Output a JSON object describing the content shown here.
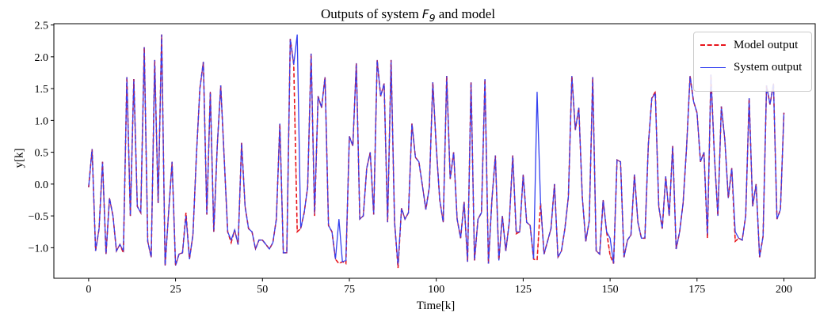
{
  "chart_data": {
    "type": "line",
    "title_prefix": "Outputs of system ",
    "title_math": "F",
    "title_math_sub": "9",
    "title_suffix": " and model",
    "xlabel": "Time[k]",
    "ylabel": "y[k]",
    "xlim": [
      -10,
      209
    ],
    "ylim": [
      -1.48,
      2.52
    ],
    "xticks": [
      0,
      25,
      50,
      75,
      100,
      125,
      150,
      175,
      200
    ],
    "yticks": [
      -1.0,
      -0.5,
      0.0,
      0.5,
      1.0,
      1.5,
      2.0,
      2.5
    ],
    "ytick_labels": [
      "−1.0",
      "−0.5",
      "0.0",
      "0.5",
      "1.0",
      "1.5",
      "2.0",
      "2.5"
    ],
    "grid": false,
    "legend_position": "top-right",
    "series": [
      {
        "name": "Model output",
        "style": "dashed",
        "color": "#e8141b"
      },
      {
        "name": "System output",
        "style": "solid",
        "color": "#3340f0"
      }
    ],
    "x_start": 0,
    "x_step": 1,
    "y_values": [
      -0.05,
      0.55,
      -1.05,
      -0.7,
      0.35,
      -1.1,
      -0.22,
      -0.5,
      -1.05,
      -0.95,
      -1.05,
      1.68,
      -0.5,
      1.65,
      -0.35,
      -0.45,
      2.15,
      -0.9,
      -1.15,
      1.95,
      -0.3,
      2.35,
      -1.28,
      -0.45,
      0.35,
      -1.28,
      -1.1,
      -1.08,
      -0.5,
      -1.18,
      -0.8,
      0.45,
      1.5,
      1.92,
      -0.48,
      1.45,
      -0.75,
      0.6,
      1.55,
      0.4,
      -0.75,
      -0.88,
      -0.72,
      -0.95,
      0.65,
      -0.35,
      -0.7,
      -0.75,
      -1.02,
      -0.88,
      -0.88,
      -0.95,
      -1.02,
      -0.92,
      -0.55,
      0.95,
      -1.08,
      -1.08,
      2.28,
      1.88,
      2.35,
      -0.7,
      -0.45,
      -0.05,
      2.05,
      -0.47,
      1.38,
      1.2,
      1.68,
      -0.65,
      -0.75,
      -1.18,
      -0.55,
      -1.22,
      -1.2,
      0.75,
      0.6,
      1.9,
      -0.55,
      -0.5,
      0.25,
      0.5,
      -0.48,
      1.95,
      1.38,
      1.58,
      -0.6,
      1.95,
      -0.6,
      -1.28,
      -0.38,
      -0.55,
      -0.45,
      0.95,
      0.42,
      0.35,
      -0.02,
      -0.4,
      -0.05,
      1.6,
      0.58,
      -0.25,
      -0.6,
      1.7,
      0.08,
      0.5,
      -0.55,
      -0.85,
      -0.28,
      -1.22,
      1.6,
      -1.2,
      -0.55,
      -0.45,
      1.65,
      -1.25,
      -0.25,
      0.45,
      -1.2,
      -0.5,
      -1.05,
      -0.6,
      0.45,
      -0.75,
      -0.75,
      0.15,
      -0.6,
      -0.65,
      -1.18,
      1.45,
      -0.3,
      -1.1,
      -0.9,
      -0.7,
      0.0,
      -1.15,
      -1.05,
      -0.7,
      -0.2,
      1.7,
      0.85,
      1.2,
      -0.2,
      -0.9,
      -0.58,
      1.68,
      -1.05,
      -1.1,
      -0.25,
      -0.75,
      -0.85,
      -1.25,
      0.38,
      0.35,
      -1.15,
      -0.88,
      -0.8,
      0.15,
      -0.6,
      -0.85,
      -0.85,
      0.62,
      1.35,
      1.42,
      -0.35,
      -0.7,
      0.12,
      -0.5,
      0.6,
      -1.02,
      -0.75,
      -0.3,
      0.58,
      1.7,
      1.3,
      1.12,
      0.35,
      0.5,
      -0.8,
      1.72,
      0.45,
      -0.5,
      1.22,
      0.7,
      -0.22,
      0.25,
      -0.75,
      -0.85,
      -0.88,
      -0.5,
      1.35,
      -0.35,
      0.0,
      -1.15,
      -0.82,
      1.55,
      1.25,
      1.58,
      -0.55,
      -0.4,
      1.12
    ],
    "model_deviations": [
      {
        "index": 10,
        "value": -1.08
      },
      {
        "index": 28,
        "value": -0.45
      },
      {
        "index": 41,
        "value": -0.92
      },
      {
        "index": 60,
        "value": -0.75
      },
      {
        "index": 65,
        "value": -0.5
      },
      {
        "index": 72,
        "value": -1.25
      },
      {
        "index": 74,
        "value": -1.25
      },
      {
        "index": 89,
        "value": -1.32
      },
      {
        "index": 123,
        "value": -0.78
      },
      {
        "index": 129,
        "value": -1.2
      },
      {
        "index": 150,
        "value": -1.12
      },
      {
        "index": 163,
        "value": 1.45
      },
      {
        "index": 178,
        "value": -0.85
      },
      {
        "index": 186,
        "value": -0.9
      }
    ]
  }
}
